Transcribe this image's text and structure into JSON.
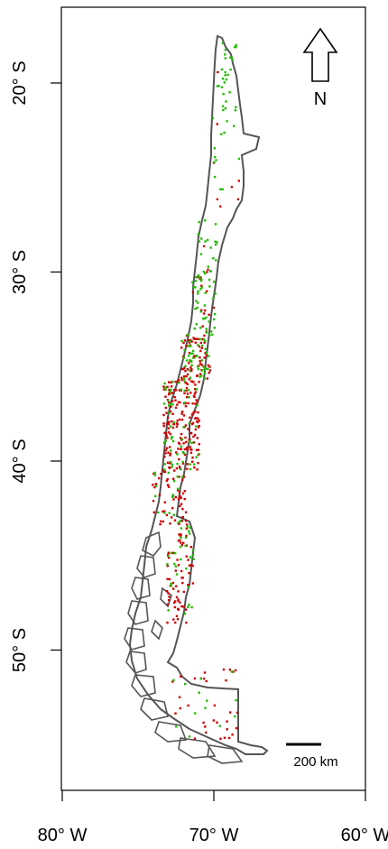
{
  "map": {
    "x_axis": {
      "ticks": [
        {
          "value": -80,
          "label": "80° W"
        },
        {
          "value": -70,
          "label": "70° W"
        },
        {
          "value": -60,
          "label": "60° W"
        }
      ]
    },
    "y_axis": {
      "ticks": [
        {
          "value": -20,
          "label": "20° S"
        },
        {
          "value": -30,
          "label": "30° S"
        },
        {
          "value": -40,
          "label": "40° S"
        },
        {
          "value": -50,
          "label": "50° S"
        }
      ]
    },
    "north_arrow_label": "N",
    "scale_bar_label": "200 km",
    "colors": {
      "outline": "#555555",
      "red_points": "#cc0000",
      "green_points": "#22bb00"
    }
  }
}
